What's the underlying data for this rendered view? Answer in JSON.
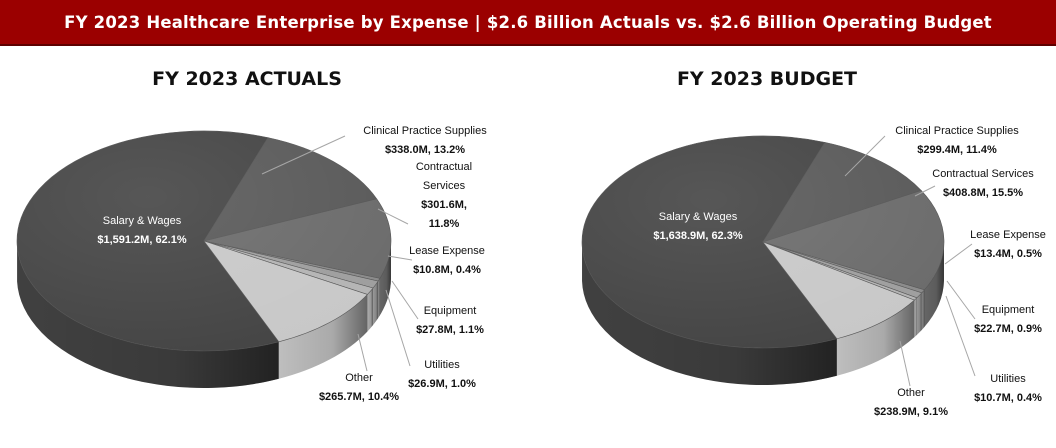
{
  "header": {
    "title": "FY 2023 Healthcare Enterprise by Expense | $2.6 Billion Actuals vs. $2.6 Billion Operating Budget",
    "background_color": "#9b0000"
  },
  "chart_data": [
    {
      "type": "pie",
      "title": "FY 2023 ACTUALS",
      "slices": [
        {
          "label": "Salary & Wages",
          "value_text": "$1,591.2M, 62.1%",
          "value": 1591.2,
          "percent": 62.1,
          "color": "#444444"
        },
        {
          "label": "Clinical Practice Supplies",
          "value_text": "$338.0M, 13.2%",
          "value": 338.0,
          "percent": 13.2,
          "color": "#595959"
        },
        {
          "label": "Contractual Services",
          "value_text": "$301.6M, 11.8%",
          "value": 301.6,
          "percent": 11.8,
          "color": "#6b6b6b"
        },
        {
          "label": "Lease Expense",
          "value_text": "$10.8M, 0.4%",
          "value": 10.8,
          "percent": 0.4,
          "color": "#8a8a8a"
        },
        {
          "label": "Equipment",
          "value_text": "$27.8M, 1.1%",
          "value": 27.8,
          "percent": 1.1,
          "color": "#9e9e9e"
        },
        {
          "label": "Utilities",
          "value_text": "$26.9M, 1.0%",
          "value": 26.9,
          "percent": 1.0,
          "color": "#b4b4b4"
        },
        {
          "label": "Other",
          "value_text": "$265.7M, 10.4%",
          "value": 265.7,
          "percent": 10.4,
          "color": "#c8c8c8"
        }
      ]
    },
    {
      "type": "pie",
      "title": "FY 2023 BUDGET",
      "slices": [
        {
          "label": "Salary & Wages",
          "value_text": "$1,638.9M, 62.3%",
          "value": 1638.9,
          "percent": 62.3,
          "color": "#444444"
        },
        {
          "label": "Clinical Practice Supplies",
          "value_text": "$299.4M, 11.4%",
          "value": 299.4,
          "percent": 11.4,
          "color": "#595959"
        },
        {
          "label": "Contractual Services",
          "value_text": "$408.8M, 15.5%",
          "value": 408.8,
          "percent": 15.5,
          "color": "#6b6b6b"
        },
        {
          "label": "Lease Expense",
          "value_text": "$13.4M, 0.5%",
          "value": 13.4,
          "percent": 0.5,
          "color": "#8a8a8a"
        },
        {
          "label": "Equipment",
          "value_text": "$22.7M, 0.9%",
          "value": 22.7,
          "percent": 0.9,
          "color": "#9e9e9e"
        },
        {
          "label": "Utilities",
          "value_text": "$10.7M, 0.4%",
          "value": 10.7,
          "percent": 0.4,
          "color": "#b4b4b4"
        },
        {
          "label": "Other",
          "value_text": "$238.9M, 9.1%",
          "value": 238.9,
          "percent": 9.1,
          "color": "#c8c8c8"
        }
      ]
    }
  ]
}
